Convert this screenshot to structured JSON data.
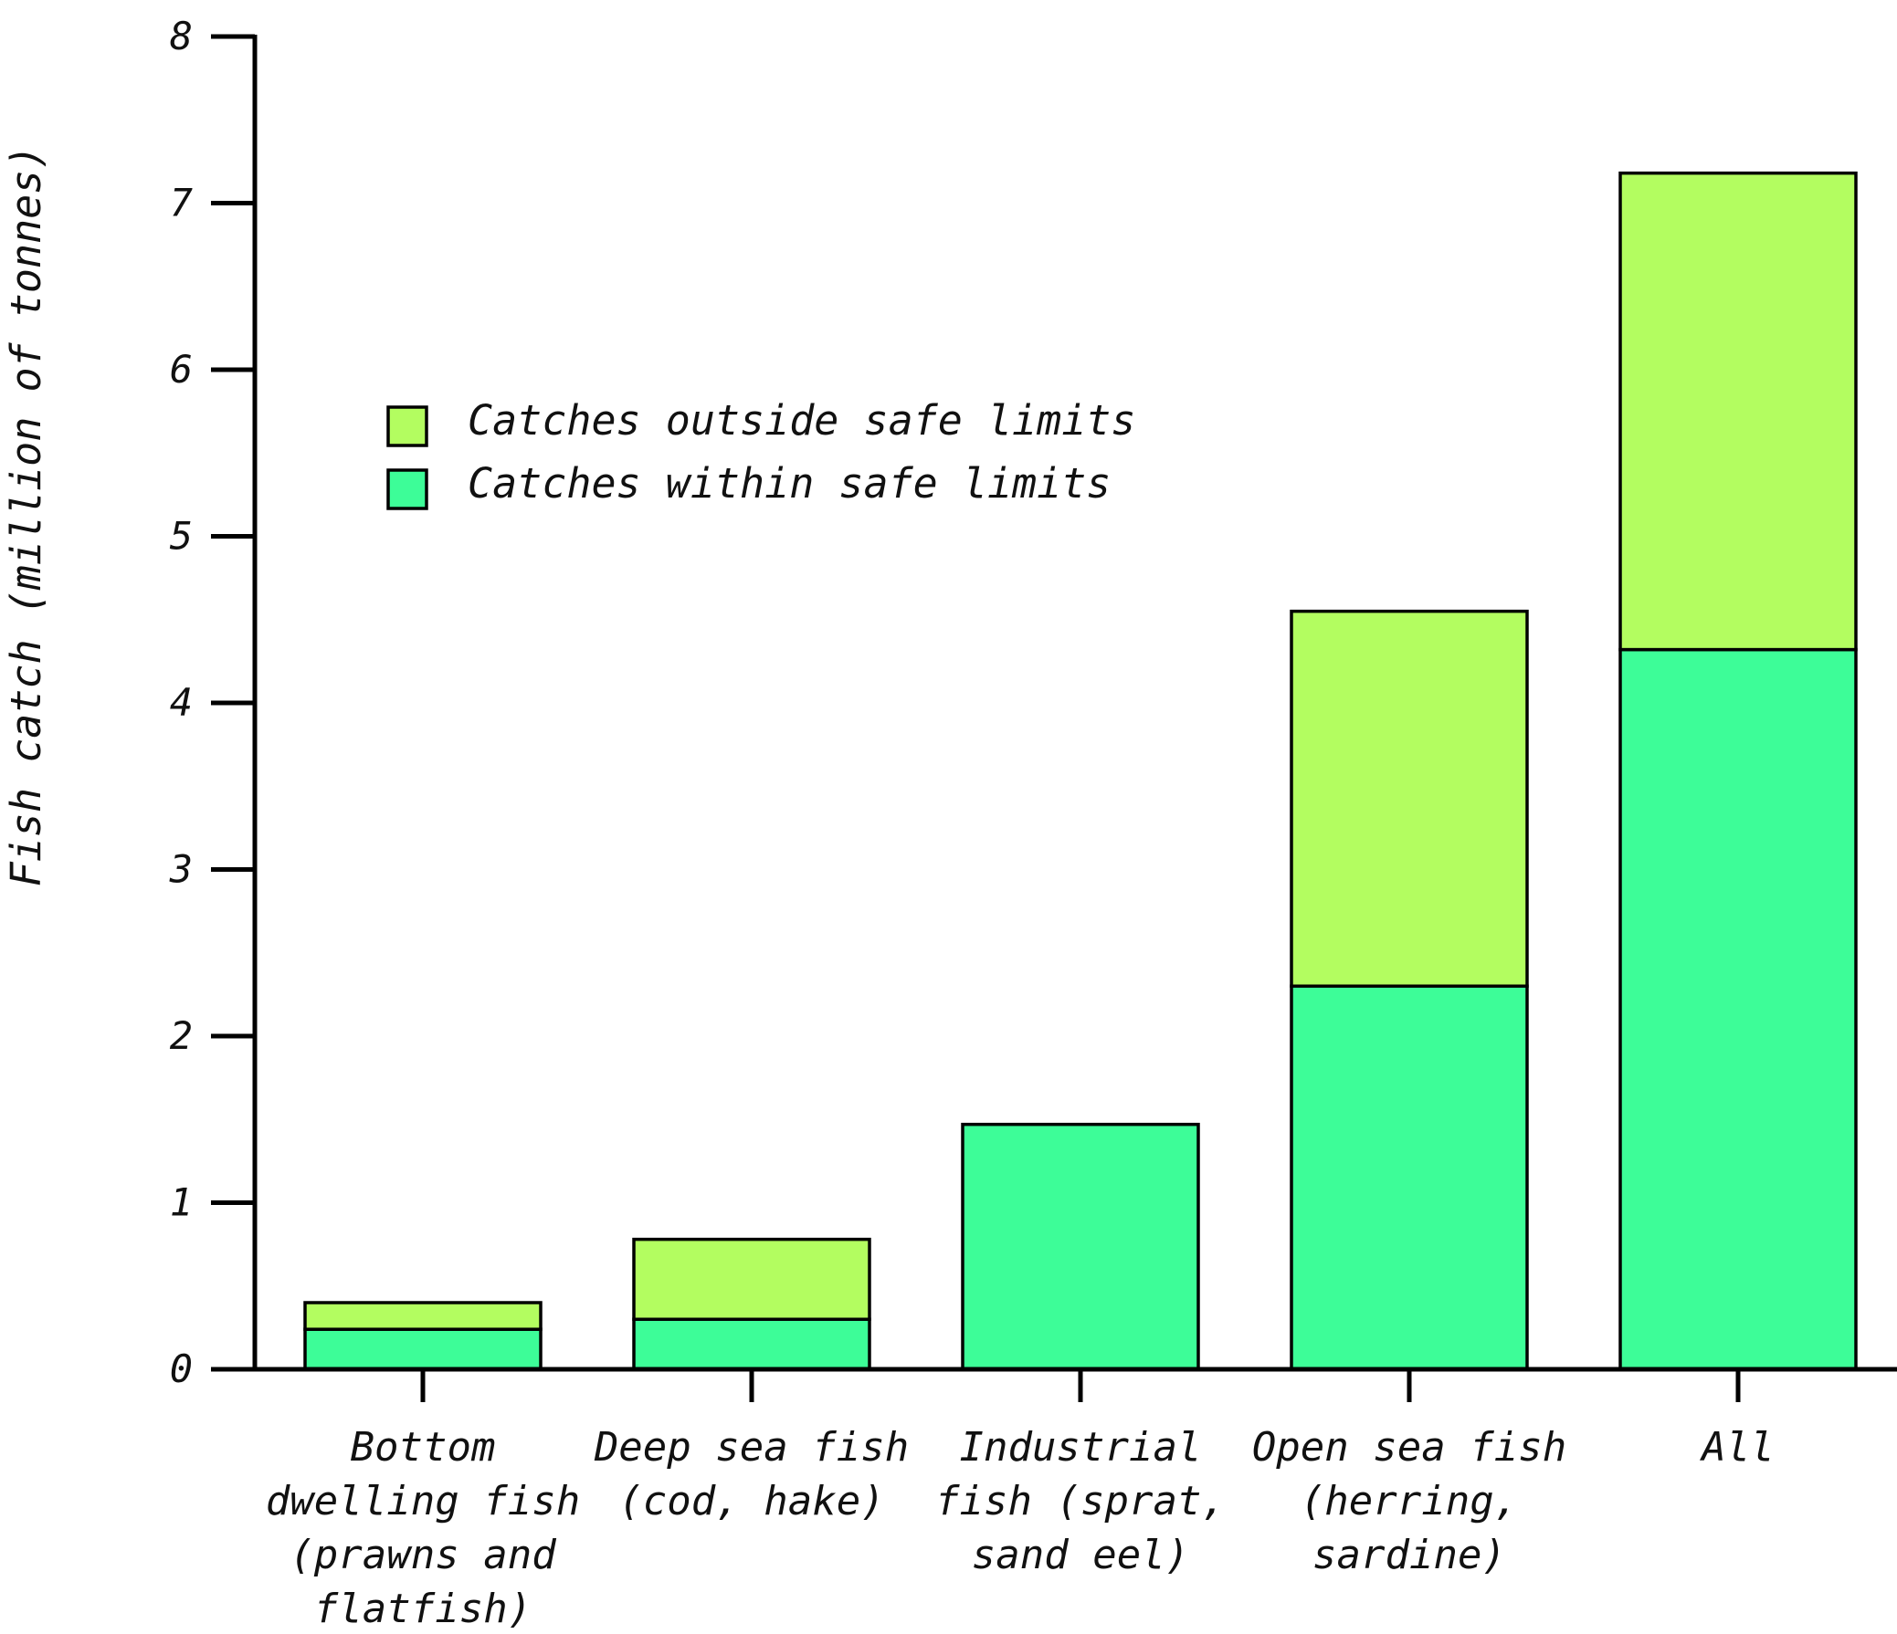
{
  "chart_data": {
    "type": "bar",
    "stacked": true,
    "title": "",
    "xlabel": "",
    "ylabel": "Fish catch (million of tonnes)",
    "ylim": [
      0,
      8
    ],
    "yticks": [
      "0",
      "1",
      "2",
      "3",
      "4",
      "5",
      "6",
      "7",
      "8"
    ],
    "grid": false,
    "legend_position": "upper-left",
    "categories": [
      [
        "Bottom",
        "dwelling fish",
        "(prawns and",
        "flatfish)"
      ],
      [
        "Deep sea fish",
        "(cod, hake)"
      ],
      [
        "Industrial",
        "fish (sprat,",
        "sand eel)"
      ],
      [
        "Open sea fish",
        "(herring,",
        "sardine)"
      ],
      [
        "All"
      ]
    ],
    "series": [
      {
        "name": "Catches within safe limits",
        "color": "#3dfd98",
        "values": [
          0.24,
          0.3,
          1.47,
          2.3,
          4.32
        ]
      },
      {
        "name": "Catches outside safe limits",
        "color": "#b3fd60",
        "values": [
          0.16,
          0.48,
          0.0,
          2.25,
          2.86
        ]
      }
    ],
    "legend_order": [
      1,
      0
    ]
  }
}
